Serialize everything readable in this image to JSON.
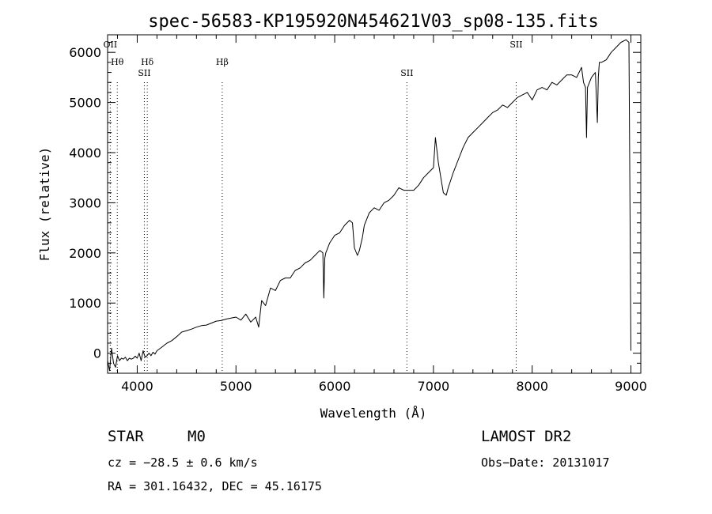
{
  "chart_data": {
    "type": "line",
    "title": "spec-56583-KP195920N454621V03_sp08-135.fits",
    "xlabel": "Wavelength (Å)",
    "ylabel": "Flux (relative)",
    "xlim": [
      3700,
      9100
    ],
    "ylim": [
      -400,
      6350
    ],
    "x_ticks": [
      4000,
      5000,
      6000,
      7000,
      8000,
      9000
    ],
    "x_tick_labels": [
      "4000",
      "5000",
      "6000",
      "7000",
      "8000",
      "9000"
    ],
    "y_ticks": [
      0,
      1000,
      2000,
      3000,
      4000,
      5000,
      6000
    ],
    "y_tick_labels": [
      "0",
      "1000",
      "2000",
      "3000",
      "4000",
      "5000",
      "6000"
    ],
    "grid": false,
    "series": [
      {
        "x": [
          3700,
          3720,
          3740,
          3760,
          3780,
          3800,
          3820,
          3840,
          3860,
          3880,
          3900,
          3920,
          3940,
          3960,
          3980,
          4000,
          4020,
          4040,
          4060,
          4080,
          4100,
          4120,
          4140,
          4160,
          4180,
          4200,
          4250,
          4300,
          4350,
          4400,
          4450,
          4500,
          4550,
          4600,
          4650,
          4700,
          4750,
          4800,
          4850,
          4900,
          4950,
          5000,
          5050,
          5100,
          5150,
          5200,
          5230,
          5260,
          5300,
          5350,
          5400,
          5450,
          5500,
          5550,
          5600,
          5650,
          5700,
          5750,
          5800,
          5850,
          5880,
          5890,
          5895,
          5900,
          5910,
          5950,
          6000,
          6050,
          6100,
          6150,
          6180,
          6200,
          6230,
          6250,
          6280,
          6300,
          6350,
          6400,
          6450,
          6500,
          6550,
          6600,
          6650,
          6700,
          6750,
          6800,
          6850,
          6900,
          6950,
          7000,
          7020,
          7050,
          7100,
          7130,
          7150,
          7200,
          7250,
          7300,
          7350,
          7400,
          7450,
          7500,
          7550,
          7600,
          7650,
          7700,
          7750,
          7800,
          7850,
          7900,
          7950,
          8000,
          8050,
          8100,
          8150,
          8200,
          8250,
          8300,
          8350,
          8400,
          8450,
          8500,
          8520,
          8540,
          8550,
          8560,
          8600,
          8640,
          8660,
          8670,
          8680,
          8700,
          8750,
          8800,
          8850,
          8900,
          8950,
          8980,
          9000
        ],
        "y": [
          -150,
          -350,
          100,
          -200,
          -280,
          -50,
          -150,
          -100,
          -120,
          -80,
          -150,
          -100,
          -120,
          -100,
          -60,
          -100,
          0,
          -150,
          50,
          -80,
          -50,
          0,
          -50,
          20,
          -20,
          50,
          120,
          200,
          250,
          330,
          420,
          450,
          480,
          520,
          550,
          560,
          600,
          640,
          650,
          680,
          700,
          720,
          660,
          780,
          620,
          720,
          520,
          1050,
          950,
          1300,
          1250,
          1450,
          1500,
          1500,
          1650,
          1700,
          1800,
          1850,
          1950,
          2050,
          2000,
          1100,
          1500,
          1900,
          2000,
          2200,
          2350,
          2400,
          2550,
          2650,
          2600,
          2100,
          1950,
          2050,
          2300,
          2550,
          2800,
          2900,
          2850,
          3000,
          3050,
          3150,
          3300,
          3250,
          3250,
          3250,
          3350,
          3500,
          3600,
          3700,
          4300,
          3800,
          3200,
          3150,
          3300,
          3600,
          3850,
          4100,
          4300,
          4400,
          4500,
          4600,
          4700,
          4800,
          4850,
          4950,
          4900,
          5000,
          5100,
          5150,
          5200,
          5050,
          5250,
          5300,
          5250,
          5400,
          5350,
          5450,
          5550,
          5550,
          5500,
          5700,
          5400,
          5300,
          4300,
          5300,
          5500,
          5600,
          4600,
          5500,
          5800,
          5800,
          5850,
          6000,
          6100,
          6200,
          6250,
          6200,
          50
        ]
      }
    ],
    "line_labels": [
      {
        "label": "Hθ",
        "x": 3798
      },
      {
        "label": "OII",
        "x": 3727
      },
      {
        "label": "SII",
        "x": 4072
      },
      {
        "label": "Hδ",
        "x": 4102
      },
      {
        "label": "Hβ",
        "x": 4861
      },
      {
        "label": "SII",
        "x": 6731
      },
      {
        "label": "SII",
        "x": 7838
      }
    ]
  },
  "footer": {
    "object_class": "STAR",
    "subclass": "M0",
    "survey": "LAMOST DR2",
    "redshift": "cz = −28.5 ± 0.6 km/s",
    "obs_date": "Obs−Date: 20131017",
    "coords": "RA = 301.16432, DEC =  45.16175"
  }
}
